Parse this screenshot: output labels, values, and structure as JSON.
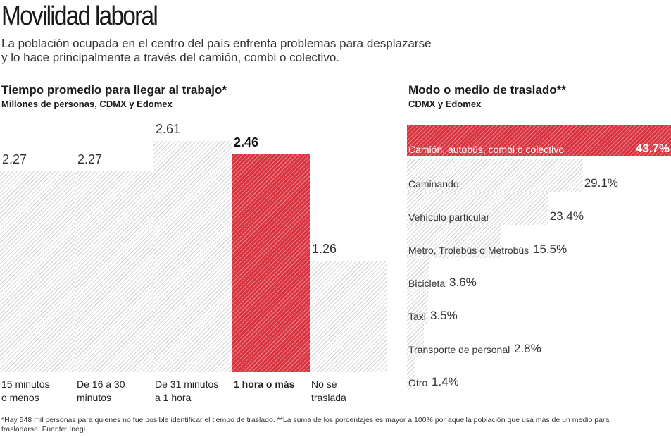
{
  "title": "Movilidad laboral",
  "subtitle_lines": [
    "La población ocupada en el centro del país enfrenta problemas para desplazarse",
    "y lo hace principalmente a través del camión, combi o colectivo."
  ],
  "highlight_color": "#d8323f",
  "chart_data": [
    {
      "type": "bar",
      "title": "Tiempo promedio para llegar al trabajo*",
      "subtitle": "Millones de personas, CDMX y Edomex",
      "categories": [
        [
          "15 minutos",
          "o menos"
        ],
        [
          "De 16 a 30",
          "minutos"
        ],
        [
          "De 31 minutos",
          "a 1 hora"
        ],
        [
          "1 hora o más"
        ],
        [
          "No se",
          "traslada"
        ]
      ],
      "values": [
        2.27,
        2.27,
        2.61,
        2.46,
        1.26
      ],
      "value_labels": [
        "2.27",
        "2.27",
        "2.61",
        "2.46",
        "1.26"
      ],
      "highlight_index": 3,
      "ylim": [
        0,
        2.61
      ]
    },
    {
      "type": "bar",
      "orientation": "horizontal",
      "title": "Modo o medio de traslado**",
      "subtitle": "CDMX y Edomex",
      "categories": [
        "Camión, autobús, combi o colectivo",
        "Caminando",
        "Vehículo particular",
        "Metro, Trolebús o Metrobús",
        "Bicicleta",
        "Taxi",
        "Transporte de personal",
        "Otro"
      ],
      "values": [
        43.7,
        29.1,
        23.4,
        15.5,
        3.6,
        3.5,
        2.8,
        1.4
      ],
      "value_labels": [
        "43.7%",
        "29.1%",
        "23.4%",
        "15.5%",
        "3.6%",
        "3.5%",
        "2.8%",
        "1.4%"
      ],
      "highlight_index": 0,
      "xlim": [
        0,
        43.7
      ]
    }
  ],
  "footnote": "*Hay 548 mil personas para quienes no fue posible identificar el tiempo de traslado. **La suma de los porcentajes es mayor a 100% por aquella población que usa más de un medio para trasladarse. Fuente: Inegi."
}
